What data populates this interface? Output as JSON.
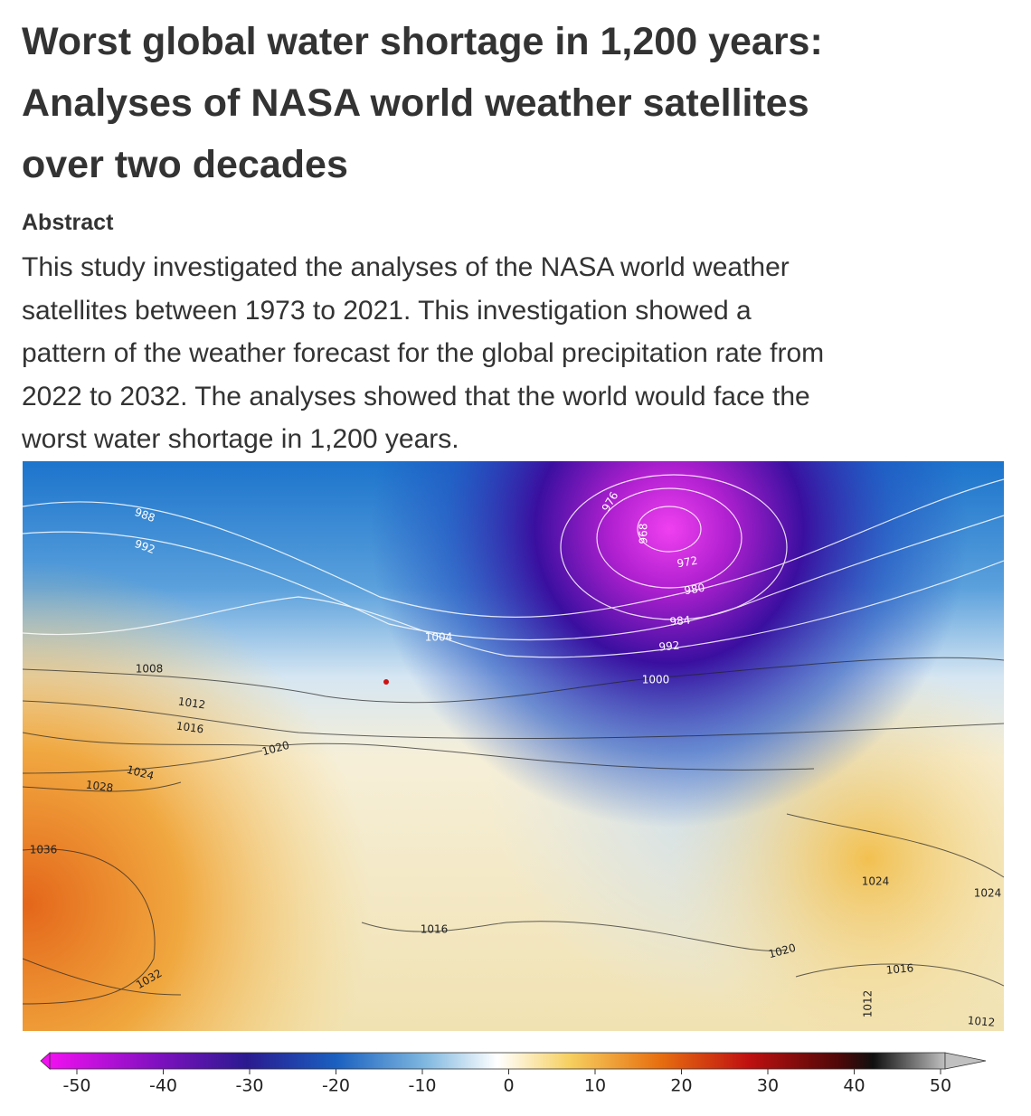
{
  "header": {
    "title_lines": [
      "Worst global water shortage in 1,200 years:",
      "Analyses of NASA world weather satellites",
      "over two decades"
    ]
  },
  "abstract": {
    "heading": "Abstract",
    "lines": [
      "This study investigated the analyses of the NASA world weather",
      "satellites between 1973 to 2021. This investigation showed a",
      "pattern of the weather forecast for the global precipitation rate from",
      "2022 to 2032. The analyses showed that the world would face the",
      "worst water shortage in 1,200 years."
    ]
  },
  "map": {
    "isobar_labels": [
      988,
      992,
      1008,
      1012,
      1016,
      1020,
      1024,
      1028,
      1036,
      1032,
      1004,
      976,
      968,
      972,
      980,
      984,
      992,
      1000,
      1016,
      1020,
      1024,
      1024,
      1016,
      1012,
      1012
    ]
  },
  "colorbar": {
    "range": [
      -50,
      50
    ],
    "ticks": [
      -50,
      -40,
      -30,
      -20,
      -10,
      0,
      10,
      20,
      30,
      40,
      50
    ]
  }
}
